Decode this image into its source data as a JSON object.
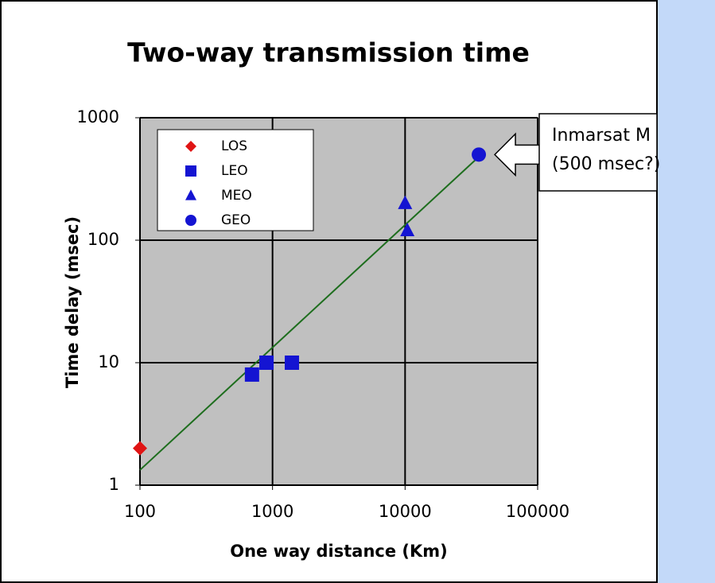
{
  "chart_data": {
    "type": "scatter",
    "title": "Two-way transmission time",
    "xlabel": "One way distance (Km)",
    "ylabel": "Time delay (msec)",
    "xscale": "log",
    "yscale": "log",
    "xlim": [
      100,
      100000
    ],
    "ylim": [
      1,
      1000
    ],
    "xticks": [
      100,
      1000,
      10000,
      100000
    ],
    "yticks": [
      1,
      10,
      100,
      1000
    ],
    "grid": true,
    "legend": "upper left",
    "series": [
      {
        "name": "LOS",
        "color": "#e01414",
        "marker": "diamond",
        "x": [
          100
        ],
        "values": [
          2
        ]
      },
      {
        "name": "LEO",
        "color": "#1414d2",
        "marker": "square",
        "x": [
          700,
          900,
          1400
        ],
        "values": [
          8,
          10,
          10
        ]
      },
      {
        "name": "MEO",
        "color": "#1414d2",
        "marker": "triangle",
        "x": [
          10000,
          10400
        ],
        "values": [
          200,
          120
        ]
      },
      {
        "name": "GEO",
        "color": "#1414d2",
        "marker": "circle",
        "x": [
          36000
        ],
        "values": [
          500
        ]
      }
    ],
    "trend_line": {
      "color": "#1e6e1e",
      "x": [
        100,
        36000
      ],
      "values": [
        1.33,
        480
      ]
    },
    "annotation": {
      "lines": [
        "Inmarsat M",
        "(500 msec?)"
      ]
    }
  }
}
